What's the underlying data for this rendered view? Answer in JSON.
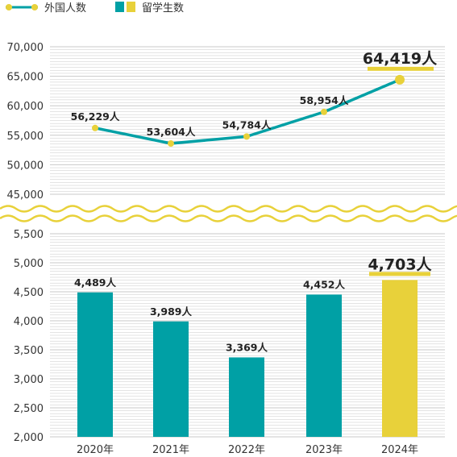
{
  "chart_data": {
    "type": "bar+line",
    "categories": [
      "2020年",
      "2021年",
      "2022年",
      "2023年",
      "2024年"
    ],
    "unit_suffix": "人",
    "legend": [
      {
        "key": "line",
        "label": "外国人数",
        "marker": "line-dot"
      },
      {
        "key": "bars",
        "label": "留学生数",
        "marker": "swatch-pair"
      }
    ],
    "line_series": {
      "name": "外国人数",
      "values": [
        56229,
        53604,
        54784,
        58954,
        64419
      ],
      "labels": [
        "56,229",
        "53,604",
        "54,784",
        "58,954",
        "64,419"
      ],
      "ylim": [
        45000,
        70000
      ],
      "yticks": [
        "70,000",
        "65,000",
        "60,000",
        "55,000",
        "50,000",
        "45,000"
      ],
      "ytick_values": [
        70000,
        65000,
        60000,
        55000,
        50000,
        45000
      ]
    },
    "bar_series": {
      "name": "留学生数",
      "values": [
        4489,
        3989,
        3369,
        4452,
        4703
      ],
      "labels": [
        "4,489",
        "3,989",
        "3,369",
        "4,452",
        "4,703"
      ],
      "ylim": [
        2000,
        5500
      ],
      "yticks": [
        "5,500",
        "5,000",
        "4,500",
        "4,000",
        "3,500",
        "3,000",
        "2,500",
        "2,000"
      ],
      "ytick_values": [
        5500,
        5000,
        4500,
        4000,
        3500,
        3000,
        2500,
        2000
      ]
    },
    "highlight_index": 4,
    "axis_break": true,
    "grid": true,
    "legend_position": "top-left",
    "colors": {
      "teal": "#00a0a5",
      "yellow": "#e8d13a",
      "grid": "#c8c8c8",
      "break_wave": "#e8d13a"
    }
  }
}
